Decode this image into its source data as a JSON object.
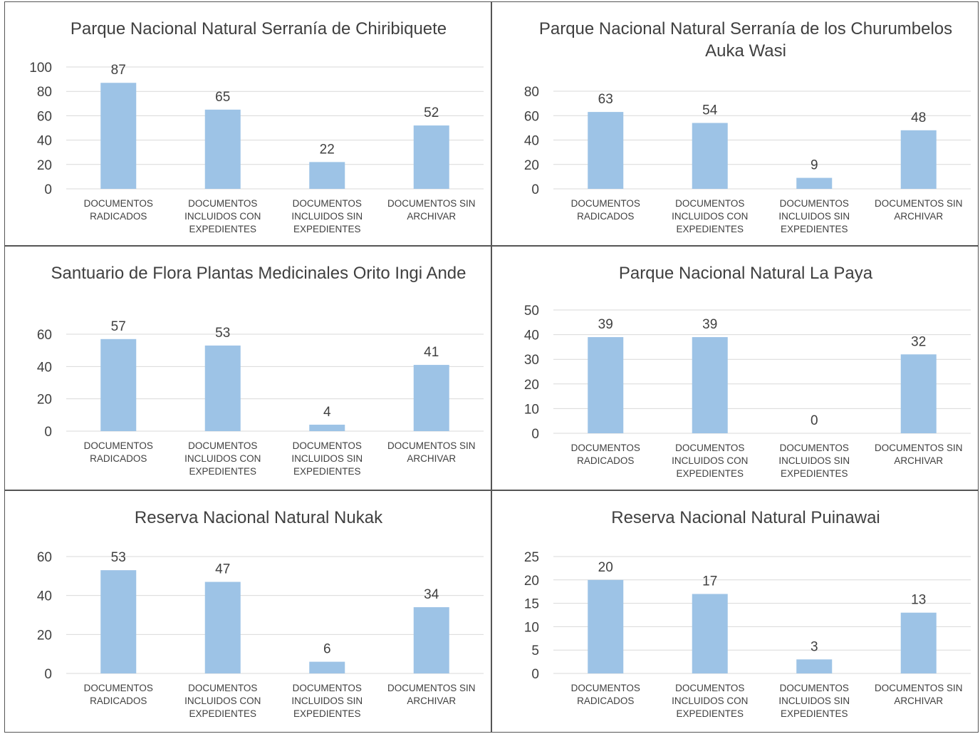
{
  "chart_data": [
    {
      "type": "bar",
      "title": "Parque Nacional Natural Serranía de Chiribiquete",
      "categories": [
        "DOCUMENTOS RADICADOS",
        "DOCUMENTOS INCLUIDOS CON EXPEDIENTES",
        "DOCUMENTOS INCLUIDOS SIN EXPEDIENTES",
        "DOCUMENTOS SIN ARCHIVAR"
      ],
      "values": [
        87,
        65,
        22,
        52
      ],
      "color": "#9dc3e6",
      "ylim": [
        0,
        100
      ],
      "yticks": [
        0,
        20,
        40,
        60,
        80,
        100
      ],
      "grid": true
    },
    {
      "type": "bar",
      "title": "Parque Nacional Natural Serranía de los Churumbelos Auka Wasi",
      "categories": [
        "DOCUMENTOS RADICADOS",
        "DOCUMENTOS INCLUIDOS CON EXPEDIENTES",
        "DOCUMENTOS INCLUIDOS SIN EXPEDIENTES",
        "DOCUMENTOS SIN ARCHIVAR"
      ],
      "values": [
        63,
        54,
        9,
        48
      ],
      "color": "#9dc3e6",
      "ylim": [
        0,
        80
      ],
      "yticks": [
        0,
        20,
        40,
        60,
        80
      ],
      "grid": true
    },
    {
      "type": "bar",
      "title": "Santuario de Flora Plantas Medicinales Orito Ingi Ande",
      "categories": [
        "DOCUMENTOS RADICADOS",
        "DOCUMENTOS INCLUIDOS CON EXPEDIENTES",
        "DOCUMENTOS INCLUIDOS SIN EXPEDIENTES",
        "DOCUMENTOS SIN ARCHIVAR"
      ],
      "values": [
        57,
        53,
        4,
        41
      ],
      "color": "#9dc3e6",
      "ylim": [
        0,
        60
      ],
      "yticks": [
        0,
        20,
        40,
        60
      ],
      "grid": true
    },
    {
      "type": "bar",
      "title": "Parque Nacional Natural La Paya",
      "categories": [
        "DOCUMENTOS RADICADOS",
        "DOCUMENTOS INCLUIDOS CON EXPEDIENTES",
        "DOCUMENTOS INCLUIDOS SIN EXPEDIENTES",
        "DOCUMENTOS SIN ARCHIVAR"
      ],
      "values": [
        39,
        39,
        0,
        32
      ],
      "color": "#9dc3e6",
      "ylim": [
        0,
        50
      ],
      "yticks": [
        0,
        10,
        20,
        30,
        40,
        50
      ],
      "grid": true
    },
    {
      "type": "bar",
      "title": "Reserva Nacional Natural Nukak",
      "categories": [
        "DOCUMENTOS RADICADOS",
        "DOCUMENTOS INCLUIDOS CON EXPEDIENTES",
        "DOCUMENTOS INCLUIDOS SIN EXPEDIENTES",
        "DOCUMENTOS SIN ARCHIVAR"
      ],
      "values": [
        53,
        47,
        6,
        34
      ],
      "color": "#9dc3e6",
      "ylim": [
        0,
        60
      ],
      "yticks": [
        0,
        20,
        40,
        60
      ],
      "grid": true
    },
    {
      "type": "bar",
      "title": "Reserva Nacional Natural Puinawai",
      "categories": [
        "DOCUMENTOS RADICADOS",
        "DOCUMENTOS INCLUIDOS CON EXPEDIENTES",
        "DOCUMENTOS INCLUIDOS SIN EXPEDIENTES",
        "DOCUMENTOS SIN ARCHIVAR"
      ],
      "values": [
        20,
        17,
        3,
        13
      ],
      "color": "#9dc3e6",
      "ylim": [
        0,
        25
      ],
      "yticks": [
        0,
        5,
        10,
        15,
        20,
        25
      ],
      "grid": true
    }
  ]
}
